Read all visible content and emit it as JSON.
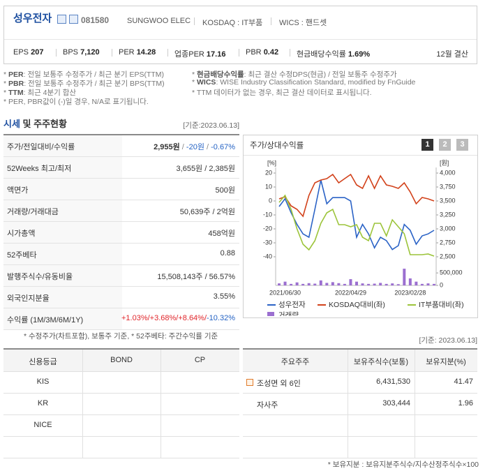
{
  "header": {
    "name": "성우전자",
    "code": "081580",
    "tags": [
      "SUNGWOO ELEC",
      "KOSDAQ : IT부품",
      "WICS : 핸드셋"
    ],
    "metrics": [
      {
        "label": "EPS",
        "value": "207"
      },
      {
        "label": "BPS",
        "value": "7,120"
      },
      {
        "label": "PER",
        "value": "14.28"
      },
      {
        "label": "업종PER",
        "value": "17.16"
      },
      {
        "label": "PBR",
        "value": "0.42"
      },
      {
        "label": "현금배당수익률",
        "value": "1.69%"
      }
    ],
    "fiscal": "12월 결산"
  },
  "notes": {
    "left": [
      [
        "*",
        "PER",
        ": 전일 보통주 수정주가 / 최근 분기 EPS(TTM)"
      ],
      [
        "*",
        "PBR",
        ": 전일 보통주 수정주가 / 최근 분기 BPS(TTM)"
      ],
      [
        "*",
        "TTM",
        ": 최근 4분기 합산"
      ],
      [
        "* PER, PBR값이 (-)일 경우, N/A로 표기됩니다."
      ]
    ],
    "right": [
      [
        "*",
        "현금배당수익률",
        ": 최근 결산 수정DPS(현금) / 전일 보통주 수정주가"
      ],
      [
        "*",
        "WICS",
        ": WISE Industry Classification Standard, modified by FnGuide"
      ],
      [
        "* TTM 데이터가 없는 경우, 최근 결산 데이터로 표시됩니다."
      ]
    ]
  },
  "section": {
    "title": [
      "시세",
      "및 주주현황"
    ],
    "date": "[기준:2023.06.13]"
  },
  "market_table": {
    "rows": [
      {
        "label": "주가/전일대비/수익률",
        "value": [
          "2,955원",
          "/",
          "-20원",
          "/",
          "-0.67%"
        ]
      },
      {
        "label": "52Weeks 최고/최저",
        "value": [
          "3,655원 / 2,385원"
        ]
      },
      {
        "label": "액면가",
        "value": [
          "500원"
        ]
      },
      {
        "label": "거래량/거래대금",
        "value": [
          "50,639주 / 2억원"
        ]
      },
      {
        "label": "시가총액",
        "value": [
          "458억원"
        ]
      },
      {
        "label": "52주베타",
        "value": [
          "0.88"
        ]
      },
      {
        "label": "발행주식수/유동비율",
        "value": [
          "15,508,143주 / 56.57%"
        ]
      },
      {
        "label": "외국인지분율",
        "value": [
          "3.55%"
        ]
      },
      {
        "label": "수익률 (1M/3M/6M/1Y)",
        "value": [
          "+1.03%/",
          "+3.68%/",
          "+8.64%/",
          "-10.32%"
        ]
      }
    ],
    "note": "* 수정주가(차트포함), 보통주 기준, * 52주베타: 주간수익률 기준"
  },
  "chart": {
    "type": "line",
    "title": "주가/상대수익률",
    "buttons": [
      "1",
      "2",
      "3"
    ],
    "y_unit": "[%]",
    "y2_unit": "[원]",
    "categories": [
      null,
      "2021/06/30",
      null,
      null,
      null,
      null,
      null,
      null,
      null,
      null,
      null,
      null,
      "2022/04/29",
      null,
      null,
      null,
      null,
      null,
      null,
      null,
      null,
      null,
      "2023/02/28",
      null,
      null,
      null,
      null
    ],
    "ylim": [
      -42,
      24
    ],
    "yticks": [
      20,
      10,
      0,
      -10,
      -20,
      -30,
      -40
    ],
    "y2lim": [
      2450,
      4100
    ],
    "y2ticks": [
      {
        "value": 4000,
        "label": "4,000"
      },
      {
        "value": 3750,
        "label": "3,750"
      },
      {
        "value": 3500,
        "label": "3,500"
      },
      {
        "value": 3250,
        "label": "3,250"
      },
      {
        "value": 3000,
        "label": "3,000"
      },
      {
        "value": 2750,
        "label": "2,750"
      },
      {
        "value": 2500,
        "label": "2,500"
      }
    ],
    "vlim": [
      0,
      700000
    ],
    "vticks": [
      {
        "value": 500000,
        "label": "500,000"
      },
      0
    ],
    "series": [
      {
        "name": "성우전자",
        "color": "#2b63c6",
        "axis": "y2",
        "values": [
          3400,
          3540,
          3290,
          3080,
          2910,
          2850,
          3350,
          3875,
          3450,
          3560,
          3560,
          3560,
          3500,
          2850,
          3080,
          2910,
          2660,
          2850,
          2790,
          2630,
          2700,
          3080,
          2975,
          2725,
          2875,
          2910,
          2975
        ]
      },
      {
        "name": "KOSDAQ대비(좌)",
        "color": "#d2421b",
        "axis": "y",
        "values": [
          1.5,
          3,
          -3.5,
          -6,
          -11,
          4,
          13,
          15,
          16,
          19,
          13,
          16,
          19,
          11.5,
          9,
          18,
          9,
          18,
          11.5,
          10.5,
          9,
          13,
          6.5,
          -2,
          2.5,
          1.5,
          0
        ]
      },
      {
        "name": "IT부품대비(좌)",
        "color": "#9cc43a",
        "axis": "y",
        "values": [
          -1,
          4,
          -6,
          -20,
          -31,
          -35,
          -28.5,
          -16,
          -8.5,
          -6,
          -17,
          -17,
          -18.5,
          -17,
          -26,
          -28.5,
          -16,
          -16,
          -25,
          -13.5,
          -18.5,
          -23.5,
          -38.5,
          -38.5,
          -38.5,
          -38,
          -39.5
        ]
      },
      {
        "name": "거래량",
        "color": "#9b6fd0",
        "axis": "volume",
        "type": "bar",
        "values": [
          80000,
          150000,
          60000,
          120000,
          60000,
          90000,
          70000,
          200000,
          100000,
          130000,
          90000,
          60000,
          250000,
          150000,
          80000,
          60000,
          70000,
          100000,
          60000,
          80000,
          50000,
          670000,
          280000,
          150000,
          60000,
          80000,
          60000
        ]
      }
    ]
  },
  "bottom_date": "[기준: 2023.06.13]",
  "credit_table": {
    "headers": [
      "신용등급",
      "BOND",
      "CP"
    ],
    "rows": [
      [
        "KIS"
      ],
      [
        "KR"
      ],
      [
        "NICE"
      ]
    ]
  },
  "holder_table": {
    "headers": [
      "주요주주",
      "보유주식수(보통)",
      "보유지분(%)"
    ],
    "rows": [
      [
        "조성면 외 6인",
        "6,431,530",
        "41.47"
      ],
      [
        "자사주",
        "303,444",
        "1.96"
      ]
    ]
  },
  "footnote": "* 보유지분 : 보유지분주식수/지수산정주식수×100"
}
